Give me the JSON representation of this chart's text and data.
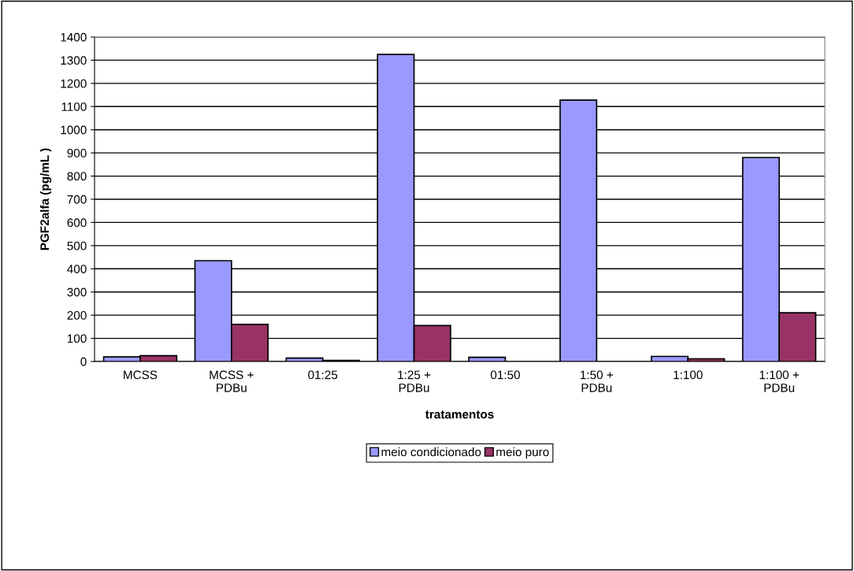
{
  "chart_data": {
    "type": "bar",
    "xlabel": "tratamentos",
    "ylabel": "PGF2alfa (pg/mL )",
    "categories": [
      "MCSS",
      "MCSS +\nPDBu",
      "01:25",
      "1:25 +\nPDBu",
      "01:50",
      "1:50 +\nPDBu",
      "1:100",
      "1:100 +\nPDBu"
    ],
    "series": [
      {
        "name": "meio condicionado",
        "color": "#9999ff",
        "values": [
          20,
          435,
          15,
          1325,
          18,
          1128,
          22,
          880
        ]
      },
      {
        "name": "meio puro",
        "color": "#993366",
        "values": [
          25,
          160,
          5,
          155,
          null,
          null,
          12,
          210
        ]
      }
    ],
    "ylim": [
      0,
      1400
    ],
    "yticks": [
      0,
      100,
      200,
      300,
      400,
      500,
      600,
      700,
      800,
      900,
      1000,
      1100,
      1200,
      1300,
      1400
    ],
    "grid": "y",
    "legend": "bottom"
  }
}
